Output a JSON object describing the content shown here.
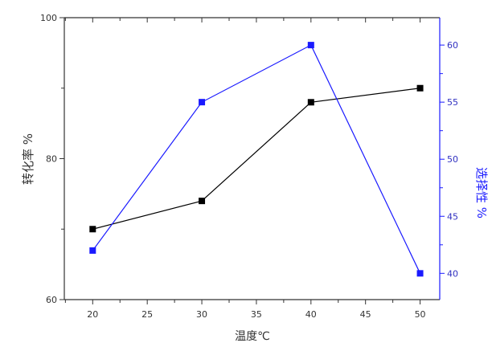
{
  "chart_data": {
    "type": "line",
    "x": [
      20,
      30,
      40,
      50
    ],
    "xlabel": "温度℃",
    "xlim": [
      17.4,
      51.8
    ],
    "xticks": [
      20,
      25,
      30,
      35,
      40,
      45,
      50
    ],
    "xtick_labels": [
      "20",
      "25",
      "30",
      "35",
      "40",
      "45",
      "50"
    ],
    "y_left": {
      "label": "转化率 %",
      "lim": [
        60,
        100
      ],
      "ticks": [
        60,
        80,
        100
      ],
      "tick_labels": [
        "60",
        "80",
        "100"
      ]
    },
    "y_right": {
      "label": "选择性 %",
      "lim": [
        37.7,
        62.4
      ],
      "ticks": [
        40,
        45,
        50,
        55,
        60
      ],
      "tick_labels": [
        "40",
        "45",
        "50",
        "55",
        "60"
      ],
      "color": "#1a1aff"
    },
    "series": [
      {
        "axis": "left",
        "values": [
          70,
          74,
          88,
          90
        ],
        "color": "#000000",
        "marker": "square"
      },
      {
        "axis": "right",
        "values": [
          42,
          55,
          60,
          40
        ],
        "color": "#1a1aff",
        "marker": "square"
      }
    ],
    "grid": false,
    "legend": "none"
  }
}
